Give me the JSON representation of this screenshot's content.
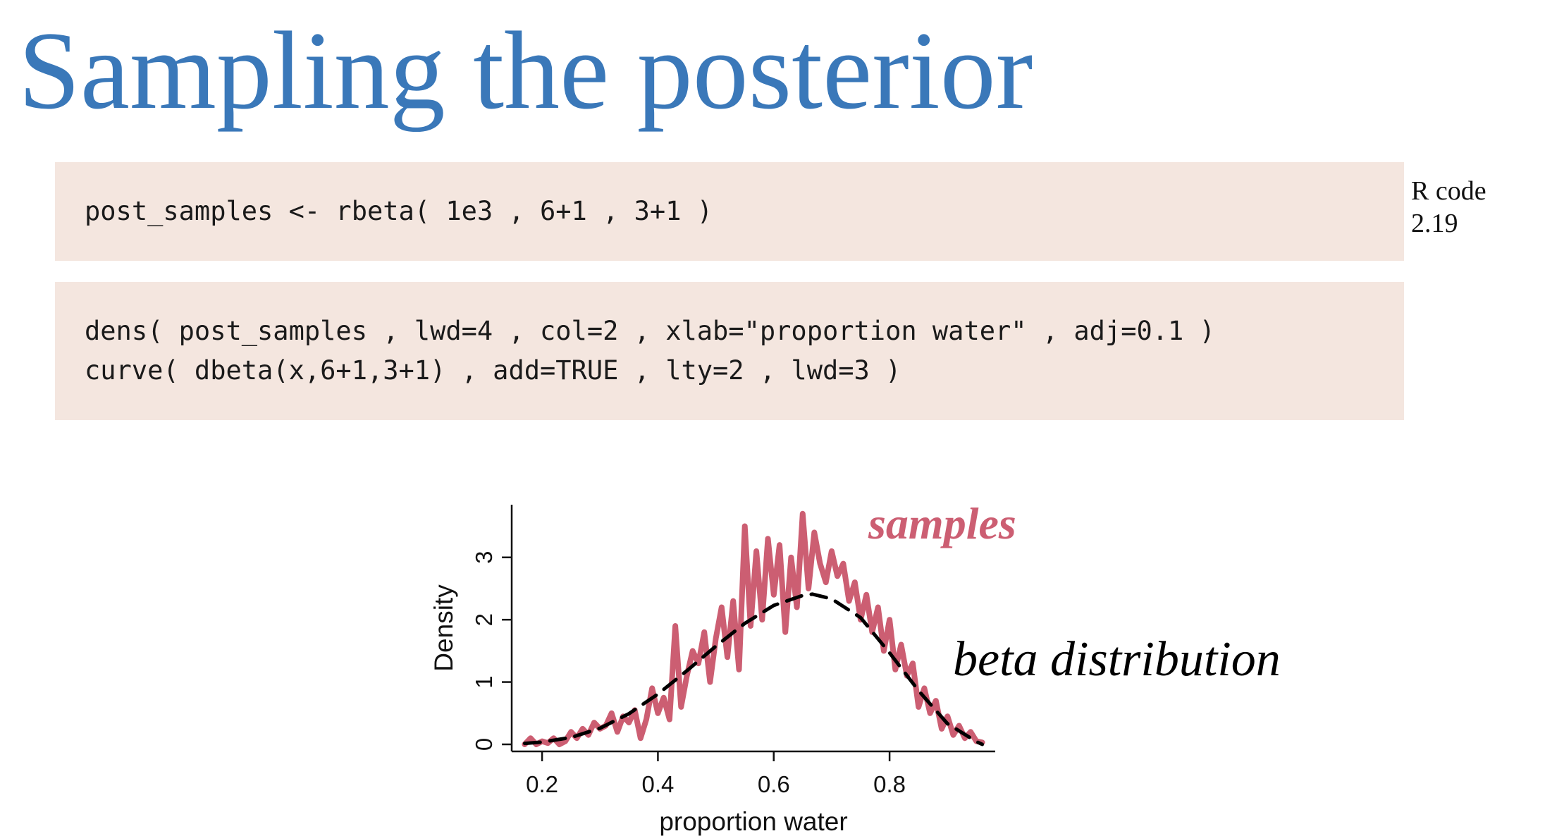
{
  "slide": {
    "title": "Sampling the posterior"
  },
  "code_block_1": {
    "lines": [
      "post_samples <- rbeta( 1e3 , 6+1 , 3+1 )"
    ],
    "ref_line1": "R code",
    "ref_line2": "2.19"
  },
  "code_block_2": {
    "lines": [
      "dens( post_samples , lwd=4 , col=2 , xlab=\"proportion water\" , adj=0.1 )",
      "curve( dbeta(x,6+1,3+1) , add=TRUE , lty=2 , lwd=3 )"
    ]
  },
  "colors": {
    "title": "#3a78b9",
    "code_background": "#f4e6df",
    "samples_series": "#cc5e72",
    "beta_series": "#000000"
  },
  "chart_data": {
    "type": "line",
    "xlabel": "proportion water",
    "ylabel": "Density",
    "xlim": [
      0.15,
      0.98
    ],
    "ylim": [
      0,
      3.8
    ],
    "xticks": [
      0.2,
      0.4,
      0.6,
      0.8
    ],
    "yticks": [
      0,
      1,
      2,
      3
    ],
    "xtick_labels": [
      "0.2",
      "0.4",
      "0.6",
      "0.8"
    ],
    "ytick_labels": [
      "0",
      "1",
      "2",
      "3"
    ],
    "grid": false,
    "annotations": [
      {
        "text": "samples",
        "series": "samples"
      },
      {
        "text": "beta distribution",
        "series": "beta"
      }
    ],
    "series": [
      {
        "id": "samples",
        "style": "solid",
        "x": [
          0.17,
          0.18,
          0.19,
          0.2,
          0.21,
          0.22,
          0.23,
          0.24,
          0.25,
          0.26,
          0.27,
          0.28,
          0.29,
          0.3,
          0.31,
          0.32,
          0.33,
          0.34,
          0.35,
          0.36,
          0.37,
          0.38,
          0.39,
          0.4,
          0.41,
          0.42,
          0.43,
          0.44,
          0.45,
          0.46,
          0.47,
          0.48,
          0.49,
          0.5,
          0.51,
          0.52,
          0.53,
          0.54,
          0.55,
          0.56,
          0.57,
          0.58,
          0.59,
          0.6,
          0.61,
          0.62,
          0.63,
          0.64,
          0.65,
          0.66,
          0.67,
          0.68,
          0.69,
          0.7,
          0.71,
          0.72,
          0.73,
          0.74,
          0.75,
          0.76,
          0.77,
          0.78,
          0.79,
          0.8,
          0.81,
          0.82,
          0.83,
          0.84,
          0.85,
          0.86,
          0.87,
          0.88,
          0.89,
          0.9,
          0.91,
          0.92,
          0.93,
          0.94,
          0.95,
          0.96
        ],
        "y": [
          0.0,
          0.1,
          0.0,
          0.05,
          0.02,
          0.1,
          0.0,
          0.05,
          0.2,
          0.1,
          0.25,
          0.15,
          0.35,
          0.25,
          0.3,
          0.5,
          0.2,
          0.45,
          0.35,
          0.55,
          0.1,
          0.4,
          0.9,
          0.5,
          0.75,
          0.4,
          1.9,
          0.6,
          1.1,
          1.5,
          1.3,
          1.8,
          1.0,
          1.7,
          2.2,
          1.4,
          2.3,
          1.2,
          3.5,
          1.9,
          3.1,
          2.0,
          3.3,
          2.4,
          3.2,
          1.8,
          3.0,
          2.2,
          3.7,
          2.5,
          3.4,
          2.9,
          2.6,
          3.1,
          2.7,
          2.9,
          2.3,
          2.6,
          2.0,
          2.4,
          1.8,
          2.2,
          1.5,
          2.0,
          1.2,
          1.6,
          1.1,
          1.3,
          0.6,
          0.9,
          0.5,
          0.7,
          0.25,
          0.45,
          0.15,
          0.3,
          0.1,
          0.2,
          0.05,
          0.03
        ]
      },
      {
        "id": "beta",
        "style": "dashed",
        "x": [
          0.17,
          0.2,
          0.25,
          0.3,
          0.35,
          0.4,
          0.45,
          0.5,
          0.55,
          0.6,
          0.65,
          0.667,
          0.7,
          0.75,
          0.8,
          0.85,
          0.9,
          0.95,
          0.96
        ],
        "y": [
          0.016,
          0.036,
          0.111,
          0.259,
          0.492,
          0.806,
          1.181,
          1.575,
          1.941,
          2.229,
          2.389,
          2.41,
          2.334,
          2.033,
          1.468,
          0.862,
          0.331,
          0.044,
          0.0
        ]
      }
    ]
  }
}
